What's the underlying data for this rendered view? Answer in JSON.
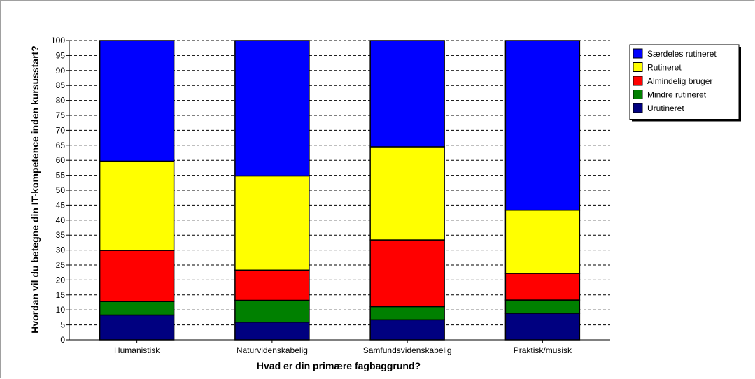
{
  "chart_data": {
    "type": "bar",
    "stacked": true,
    "categories": [
      "Humanistisk",
      "Naturvidenskabelig",
      "Samfundsvidenskabelig",
      "Praktisk/musisk"
    ],
    "series": [
      {
        "name": "Urutineret",
        "color": "#000080",
        "values": [
          8.3,
          5.9,
          6.7,
          8.9
        ]
      },
      {
        "name": "Mindre rutineret",
        "color": "#008000",
        "values": [
          4.5,
          7.3,
          4.4,
          4.4
        ]
      },
      {
        "name": "Almindelig bruger",
        "color": "#ff0000",
        "values": [
          17.1,
          10.1,
          22.3,
          8.9
        ]
      },
      {
        "name": "Rutineret",
        "color": "#ffff00",
        "values": [
          29.8,
          31.5,
          31.1,
          21.1
        ]
      },
      {
        "name": "Særdeles rutineret",
        "color": "#0000ff",
        "values": [
          40.3,
          45.2,
          35.5,
          56.7
        ]
      }
    ],
    "xlabel": "Hvad er din primære fagbaggrund?",
    "ylabel": "Hvordan vil du betegne din IT-kompetence inden kursusstart?",
    "ylim": [
      0,
      100
    ],
    "ytick_step": 5,
    "grid": true,
    "legend_position": "top-right",
    "legend_order": [
      "Særdeles rutineret",
      "Rutineret",
      "Almindelig bruger",
      "Mindre rutineret",
      "Urutineret"
    ]
  }
}
